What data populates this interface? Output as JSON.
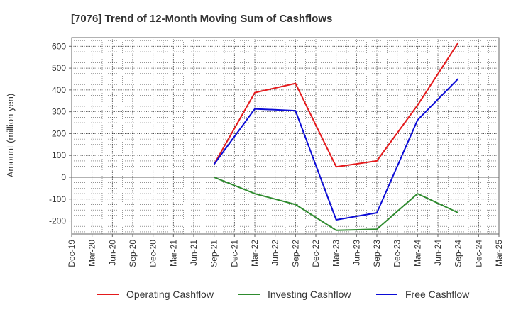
{
  "chart_data": {
    "type": "line",
    "title": "[7076]  Trend of 12-Month Moving Sum of Cashflows",
    "xlabel": "",
    "ylabel": "Amount (million yen)",
    "ylim": [
      -260,
      640
    ],
    "yticks": [
      600,
      500,
      400,
      300,
      200,
      100,
      0,
      -100,
      -200
    ],
    "ytick_labels": [
      "600",
      "500",
      "400",
      "300",
      "200",
      "100",
      "0",
      "-100",
      "-200"
    ],
    "categories": [
      "Dec-19",
      "Mar-20",
      "Jun-20",
      "Sep-20",
      "Dec-20",
      "Mar-21",
      "Jun-21",
      "Sep-21",
      "Dec-21",
      "Mar-22",
      "Jun-22",
      "Sep-22",
      "Dec-22",
      "Mar-23",
      "Jun-23",
      "Sep-23",
      "Dec-23",
      "Mar-24",
      "Jun-24",
      "Sep-24",
      "Dec-24",
      "Mar-25"
    ],
    "grid": true,
    "legend_position": "bottom",
    "series": [
      {
        "name": "Operating Cashflow",
        "color": "#e41a1c",
        "values": [
          null,
          null,
          null,
          null,
          null,
          null,
          null,
          60,
          null,
          388,
          null,
          430,
          null,
          48,
          null,
          75,
          null,
          330,
          null,
          617,
          null,
          null
        ]
      },
      {
        "name": "Investing Cashflow",
        "color": "#2e8b2e",
        "values": [
          null,
          null,
          null,
          null,
          null,
          null,
          null,
          0,
          null,
          -75,
          null,
          -125,
          null,
          -243,
          null,
          -238,
          null,
          -75,
          null,
          -163,
          null,
          null
        ]
      },
      {
        "name": "Free Cashflow",
        "color": "#0b0bd6",
        "values": [
          null,
          null,
          null,
          null,
          null,
          null,
          null,
          60,
          null,
          313,
          null,
          305,
          null,
          -195,
          null,
          -163,
          null,
          262,
          null,
          452,
          null,
          null
        ]
      }
    ]
  }
}
